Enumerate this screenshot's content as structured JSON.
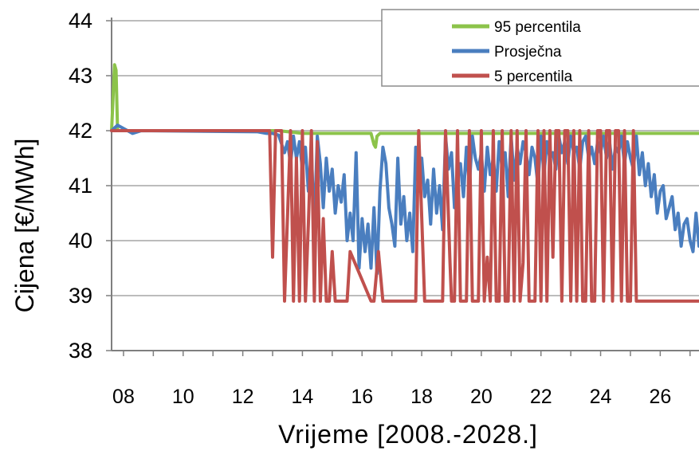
{
  "chart_data": {
    "type": "line",
    "title": "",
    "xlabel": "Vrijeme [2008.-2028.]",
    "ylabel": "Cijena [€/MWh]",
    "xlim": [
      2007.6,
      2027.3
    ],
    "ylim": [
      38,
      44
    ],
    "y_ticks": [
      38,
      39,
      40,
      41,
      42,
      43,
      44
    ],
    "x_ticks": [
      {
        "v": 2008,
        "label": "08"
      },
      {
        "v": 2010,
        "label": "10"
      },
      {
        "v": 2012,
        "label": "12"
      },
      {
        "v": 2014,
        "label": "14"
      },
      {
        "v": 2016,
        "label": "16"
      },
      {
        "v": 2018,
        "label": "18"
      },
      {
        "v": 2020,
        "label": "20"
      },
      {
        "v": 2022,
        "label": "22"
      },
      {
        "v": 2024,
        "label": "24"
      },
      {
        "v": 2026,
        "label": "26"
      }
    ],
    "grid": "horizontal",
    "legend_position": "top-right",
    "series": [
      {
        "name": "95 percentila",
        "color": "#8cc34a",
        "x": [
          2007.6,
          2007.7,
          2007.75,
          2007.8,
          2007.9,
          2012.8,
          2013.2,
          2014.0,
          2016.3,
          2016.4,
          2016.45,
          2016.5,
          2016.6,
          2027.3
        ],
        "y": [
          42.0,
          43.2,
          43.1,
          42.0,
          42.0,
          42.0,
          42.0,
          41.95,
          41.95,
          41.75,
          41.7,
          41.9,
          41.95,
          41.95
        ]
      },
      {
        "name": "Prosječna",
        "color": "#4a7ebf",
        "x": [
          2007.6,
          2007.8,
          2008.3,
          2008.6,
          2012.5,
          2012.8,
          2013.0,
          2013.2,
          2013.4,
          2013.5,
          2013.6,
          2013.7,
          2013.8,
          2013.9,
          2014.0,
          2014.1,
          2014.2,
          2014.3,
          2014.4,
          2014.5,
          2014.6,
          2014.7,
          2014.8,
          2014.9,
          2015.0,
          2015.1,
          2015.2,
          2015.3,
          2015.4,
          2015.5,
          2015.6,
          2015.7,
          2015.8,
          2015.9,
          2016.0,
          2016.1,
          2016.2,
          2016.3,
          2016.4,
          2016.5,
          2016.6,
          2016.7,
          2016.8,
          2016.9,
          2017.0,
          2017.1,
          2017.2,
          2017.3,
          2017.4,
          2017.5,
          2017.6,
          2017.7,
          2017.8,
          2017.9,
          2018.0,
          2018.1,
          2018.2,
          2018.3,
          2018.4,
          2018.5,
          2018.6,
          2018.7,
          2018.8,
          2018.9,
          2019.0,
          2019.1,
          2019.2,
          2019.3,
          2019.4,
          2019.5,
          2019.6,
          2019.7,
          2019.8,
          2019.9,
          2020.0,
          2020.1,
          2020.2,
          2020.3,
          2020.4,
          2020.5,
          2020.6,
          2020.7,
          2020.8,
          2020.9,
          2021.0,
          2021.1,
          2021.2,
          2021.3,
          2021.4,
          2021.5,
          2021.6,
          2021.7,
          2021.8,
          2021.9,
          2022.0,
          2022.1,
          2022.2,
          2022.3,
          2022.4,
          2022.5,
          2022.6,
          2022.7,
          2022.8,
          2022.9,
          2023.0,
          2023.1,
          2023.2,
          2023.3,
          2023.4,
          2023.5,
          2023.6,
          2023.7,
          2023.8,
          2023.9,
          2024.0,
          2024.1,
          2024.2,
          2024.3,
          2024.4,
          2024.5,
          2024.6,
          2024.7,
          2024.8,
          2024.9,
          2025.0,
          2025.1,
          2025.2,
          2025.3,
          2025.4,
          2025.5,
          2025.6,
          2025.7,
          2025.8,
          2025.9,
          2026.0,
          2026.1,
          2026.2,
          2026.3,
          2026.4,
          2026.5,
          2026.6,
          2026.7,
          2026.8,
          2026.9,
          2027.0,
          2027.1,
          2027.2,
          2027.3
        ],
        "y": [
          42.0,
          42.1,
          41.95,
          42.0,
          41.98,
          41.95,
          41.95,
          41.92,
          41.6,
          41.8,
          41.4,
          41.9,
          41.5,
          41.8,
          41.3,
          41.7,
          40.9,
          41.6,
          40.2,
          41.9,
          41.4,
          40.6,
          41.5,
          40.9,
          41.3,
          40.5,
          41.0,
          40.7,
          41.2,
          40.0,
          40.5,
          40.0,
          41.6,
          39.5,
          40.4,
          39.8,
          40.3,
          39.5,
          40.6,
          39.4,
          40.9,
          41.7,
          41.4,
          40.6,
          40.3,
          39.9,
          41.5,
          40.3,
          40.8,
          40.0,
          40.5,
          39.8,
          41.7,
          40.9,
          41.5,
          40.8,
          41.1,
          40.3,
          41.3,
          40.5,
          41.0,
          40.2,
          41.9,
          41.3,
          41.6,
          40.6,
          41.1,
          41.4,
          40.8,
          41.7,
          41.0,
          41.9,
          41.5,
          41.3,
          41.6,
          40.9,
          41.7,
          41.2,
          41.5,
          40.9,
          41.8,
          41.3,
          41.6,
          40.8,
          41.9,
          41.1,
          41.7,
          41.4,
          41.8,
          41.6,
          41.2,
          41.7,
          41.5,
          41.0,
          41.9,
          41.2,
          41.8,
          41.5,
          41.6,
          41.3,
          41.9,
          41.6,
          41.8,
          41.4,
          41.9,
          41.6,
          41.7,
          41.3,
          41.8,
          41.9,
          41.5,
          41.7,
          41.4,
          41.8,
          41.6,
          41.9,
          41.5,
          41.8,
          41.3,
          41.7,
          41.6,
          41.9,
          41.4,
          41.8,
          41.5,
          41.3,
          41.9,
          41.2,
          41.6,
          41.0,
          41.4,
          40.8,
          41.2,
          40.5,
          40.9,
          41.0,
          40.4,
          40.6,
          40.8,
          40.2,
          40.5,
          39.9,
          40.3,
          40.4,
          40.0,
          39.8,
          40.5,
          39.9
        ],
        "_note": ""
      },
      {
        "name": "5 percentila",
        "color": "#c0504d",
        "x": [
          2007.6,
          2012.9,
          2013.0,
          2013.1,
          2013.3,
          2013.4,
          2013.6,
          2013.7,
          2013.8,
          2013.9,
          2014.0,
          2014.1,
          2014.2,
          2014.3,
          2014.4,
          2014.5,
          2014.6,
          2014.7,
          2014.8,
          2014.9,
          2015.0,
          2015.1,
          2015.5,
          2015.6,
          2016.3,
          2016.4,
          2016.55,
          2016.7,
          2016.85,
          2017.0,
          2017.8,
          2017.9,
          2018.1,
          2018.2,
          2018.7,
          2018.8,
          2018.95,
          2019.0,
          2019.1,
          2019.2,
          2019.3,
          2019.4,
          2019.5,
          2019.6,
          2019.7,
          2019.8,
          2019.9,
          2020.0,
          2020.1,
          2020.2,
          2020.3,
          2020.4,
          2020.5,
          2020.6,
          2020.7,
          2020.8,
          2020.9,
          2021.0,
          2021.1,
          2021.2,
          2021.3,
          2021.4,
          2021.5,
          2021.6,
          2021.7,
          2021.8,
          2021.9,
          2022.0,
          2022.1,
          2022.2,
          2022.3,
          2022.4,
          2022.5,
          2022.6,
          2022.7,
          2022.8,
          2022.9,
          2023.0,
          2023.1,
          2023.2,
          2023.3,
          2023.4,
          2023.5,
          2023.6,
          2023.7,
          2023.8,
          2023.9,
          2024.0,
          2024.1,
          2024.2,
          2024.3,
          2024.4,
          2024.5,
          2024.6,
          2024.7,
          2024.8,
          2024.9,
          2025.0,
          2025.1,
          2025.2,
          2025.3,
          2025.4,
          2027.3
        ],
        "y": [
          42.0,
          42.0,
          39.7,
          42.0,
          42.0,
          38.9,
          42.0,
          38.9,
          41.5,
          38.9,
          42.0,
          38.9,
          40.3,
          42.0,
          38.9,
          41.8,
          38.9,
          40.4,
          38.9,
          38.9,
          39.8,
          38.9,
          38.9,
          39.8,
          38.9,
          38.9,
          39.8,
          38.9,
          38.9,
          38.9,
          38.9,
          42.0,
          38.9,
          38.9,
          38.9,
          42.0,
          39.6,
          38.9,
          38.9,
          42.0,
          38.9,
          38.9,
          38.9,
          42.0,
          38.9,
          38.9,
          38.9,
          42.0,
          38.9,
          39.7,
          38.9,
          42.0,
          38.9,
          38.9,
          42.0,
          38.9,
          38.9,
          42.0,
          38.9,
          42.0,
          38.9,
          39.6,
          42.0,
          38.9,
          38.9,
          38.9,
          42.0,
          38.9,
          42.0,
          38.9,
          42.0,
          39.7,
          42.0,
          42.0,
          38.9,
          42.0,
          42.0,
          38.9,
          42.0,
          38.9,
          42.0,
          38.9,
          38.9,
          42.0,
          38.9,
          38.9,
          42.0,
          42.0,
          38.9,
          42.0,
          42.0,
          38.9,
          42.0,
          42.0,
          38.9,
          42.0,
          38.9,
          38.9,
          42.0,
          38.9,
          38.9,
          38.9,
          38.9
        ]
      }
    ]
  }
}
